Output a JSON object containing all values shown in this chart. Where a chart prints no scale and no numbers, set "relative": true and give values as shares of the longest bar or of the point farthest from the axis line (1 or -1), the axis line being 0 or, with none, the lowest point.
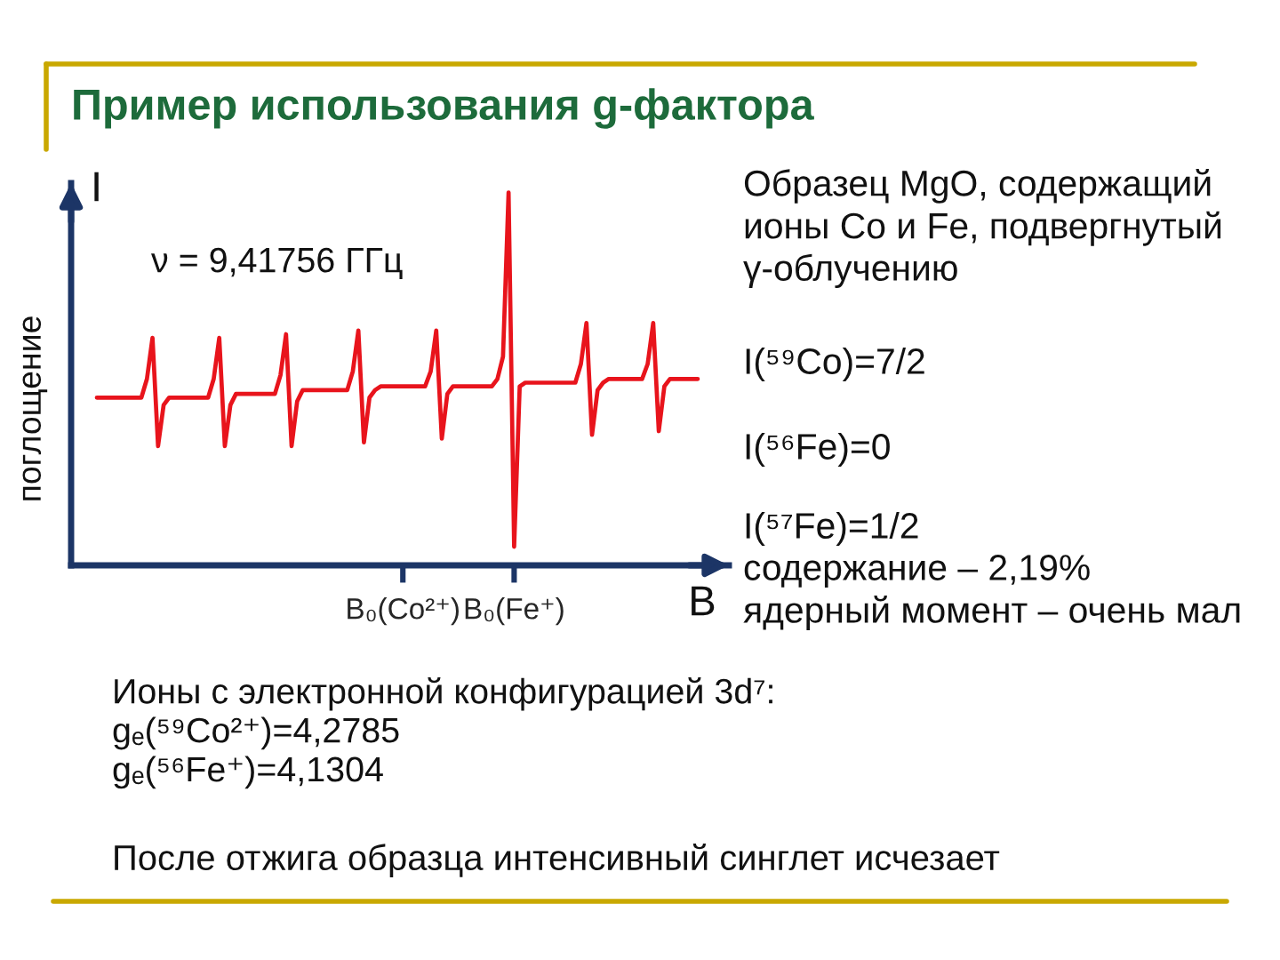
{
  "chart_data": {
    "type": "line",
    "title": "Пример использования g-фактора",
    "xlabel": "B",
    "ylabel": "поглощение",
    "annotations": [
      "I",
      "ν = 9,41756 ГГц",
      "Образец MgO, содержащий\nионы Co и Fe, подвергнутый\nγ-облучению",
      "I(⁵⁹Co)=7/2",
      "I(⁵⁶Fe)=0",
      "I(⁵⁷Fe)=1/2\nсодержание – 2,19%\nядерный момент – очень мал",
      "Ионы с электронной конфигурацией 3d⁷:\ngₑ(⁵⁹Co²⁺)=4,2785\ngₑ(⁵⁶Fe⁺)=4,1304",
      "После отжига образца интенсивный синглет исчезает"
    ],
    "relative": true,
    "tick_labels": "x",
    "categories": [
      null,
      null,
      null,
      null,
      null,
      null,
      null,
      null,
      null,
      null,
      null,
      null,
      null,
      null,
      null,
      null,
      null,
      null,
      null,
      null,
      null,
      null,
      null,
      null,
      null,
      null,
      null,
      null,
      null,
      null,
      null,
      null,
      null,
      null,
      null,
      null,
      null,
      null,
      null,
      null,
      null,
      null,
      null,
      null,
      null,
      null,
      null,
      null,
      null,
      null,
      null,
      null,
      null,
      null,
      null,
      "B₀(Co²⁺)",
      null,
      null,
      null,
      null,
      null,
      null,
      null,
      null,
      null,
      null,
      null,
      null,
      null,
      null,
      null,
      null,
      null,
      null,
      null,
      "B₀(Fe⁺)",
      null,
      null,
      null,
      null,
      null,
      null,
      null,
      null,
      null,
      null,
      null,
      null,
      null,
      null,
      null,
      null,
      null,
      null,
      null,
      null,
      null,
      null,
      null,
      null,
      null,
      null,
      null,
      null,
      null,
      null,
      null,
      null,
      null
    ],
    "series": [
      {
        "color": "#e8141c",
        "values": [
          0.45,
          0.45,
          0.45,
          0.45,
          0.45,
          0.45,
          0.45,
          0.45,
          0.45,
          0.5,
          0.61,
          0.32,
          0.43,
          0.45,
          0.45,
          0.45,
          0.45,
          0.45,
          0.45,
          0.45,
          0.45,
          0.5,
          0.61,
          0.32,
          0.43,
          0.46,
          0.46,
          0.46,
          0.46,
          0.46,
          0.46,
          0.46,
          0.46,
          0.51,
          0.62,
          0.32,
          0.44,
          0.47,
          0.47,
          0.47,
          0.47,
          0.47,
          0.47,
          0.47,
          0.47,
          0.47,
          0.52,
          0.63,
          0.33,
          0.45,
          0.47,
          0.48,
          0.48,
          0.48,
          0.48,
          0.48,
          0.48,
          0.48,
          0.48,
          0.48,
          0.52,
          0.63,
          0.34,
          0.46,
          0.48,
          0.48,
          0.48,
          0.48,
          0.48,
          0.48,
          0.48,
          0.48,
          0.5,
          0.56,
          1.0,
          0.05,
          0.48,
          0.49,
          0.49,
          0.49,
          0.49,
          0.49,
          0.49,
          0.49,
          0.49,
          0.49,
          0.49,
          0.54,
          0.65,
          0.35,
          0.47,
          0.49,
          0.5,
          0.5,
          0.5,
          0.5,
          0.5,
          0.5,
          0.5,
          0.54,
          0.65,
          0.36,
          0.48,
          0.5,
          0.5,
          0.5,
          0.5,
          0.5,
          0.5
        ]
      }
    ]
  }
}
